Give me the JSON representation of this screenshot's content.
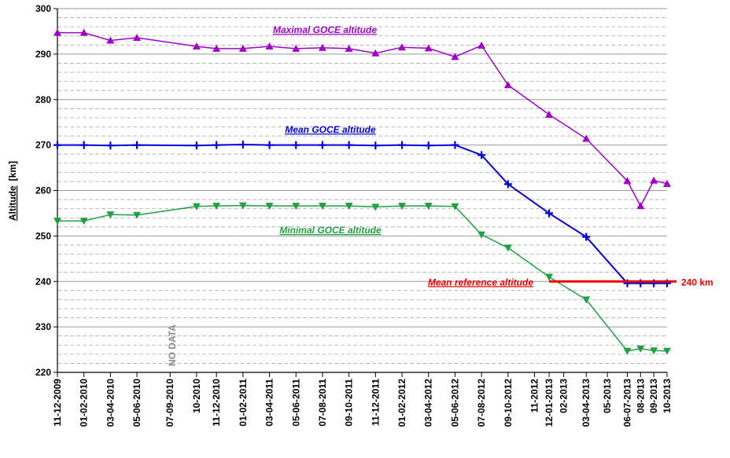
{
  "chart_data": {
    "type": "line",
    "ylabel": "Altitude",
    "ylabel_unit": "[km]",
    "annotation": "NO DATA",
    "xlim": [
      0,
      46
    ],
    "xticks": [
      {
        "value": 0,
        "label": "11-12-2009"
      },
      {
        "value": 2,
        "label": "01-02-2010"
      },
      {
        "value": 4,
        "label": "03-04-2010"
      },
      {
        "value": 6,
        "label": "05-06-2010"
      },
      {
        "value": 8.5,
        "label": "07-09-2010"
      },
      {
        "value": 10.5,
        "label": "10-2010"
      },
      {
        "value": 12,
        "label": "11-12-2010"
      },
      {
        "value": 14,
        "label": "01-02-2011"
      },
      {
        "value": 16,
        "label": "03-04-2011"
      },
      {
        "value": 18,
        "label": "05-06-2011"
      },
      {
        "value": 20,
        "label": "07-08-2011"
      },
      {
        "value": 22,
        "label": "09-10-2011"
      },
      {
        "value": 24,
        "label": "11-12-2011"
      },
      {
        "value": 26,
        "label": "01-02-2012"
      },
      {
        "value": 28,
        "label": "03-04-2012"
      },
      {
        "value": 30,
        "label": "05-06-2012"
      },
      {
        "value": 32,
        "label": "07-08-2012"
      },
      {
        "value": 34,
        "label": "09-10-2012"
      },
      {
        "value": 36,
        "label": "11-2012"
      },
      {
        "value": 37.1,
        "label": "12-01-2013"
      },
      {
        "value": 38.2,
        "label": "02-2013"
      },
      {
        "value": 39.9,
        "label": "03-04-2013"
      },
      {
        "value": 41.5,
        "label": "05-2013"
      },
      {
        "value": 43,
        "label": "06-07-2013"
      },
      {
        "value": 44,
        "label": "08-2013"
      },
      {
        "value": 45,
        "label": "09-2013"
      },
      {
        "value": 46,
        "label": "10-2013"
      }
    ],
    "ylim": [
      220,
      300
    ],
    "yticks": [
      220,
      230,
      240,
      250,
      260,
      270,
      280,
      290,
      300
    ],
    "minor_yticks": [
      222,
      224,
      226,
      228,
      232,
      234,
      236,
      238,
      242,
      244,
      246,
      248,
      252,
      254,
      256,
      258,
      262,
      264,
      266,
      268,
      272,
      274,
      276,
      278,
      282,
      284,
      286,
      288,
      292,
      294,
      296,
      298
    ],
    "grid": true,
    "series": [
      {
        "name": "Maximal GOCE altitude",
        "color": "#a000c8",
        "marker": "triangle-up",
        "x": [
          0,
          2,
          4,
          6,
          10.5,
          12,
          14,
          16,
          18,
          20,
          22,
          24,
          26,
          28,
          30,
          32,
          34,
          37.1,
          39.9,
          43,
          44,
          45,
          46
        ],
        "values": [
          294.7,
          294.7,
          293,
          293.6,
          291.7,
          291.2,
          291.2,
          291.7,
          291.2,
          291.4,
          291.2,
          290.2,
          291.5,
          291.3,
          289.4,
          291.9,
          283.2,
          276.7,
          271.4,
          262.1,
          256.6,
          262.2,
          261.5
        ]
      },
      {
        "name": "Mean GOCE altitude",
        "color": "#0000dd",
        "marker": "plus",
        "x": [
          0,
          2,
          4,
          6,
          10.5,
          12,
          14,
          16,
          18,
          20,
          22,
          24,
          26,
          28,
          30,
          32,
          34,
          37.1,
          39.9,
          43,
          44,
          45,
          46
        ],
        "values": [
          270,
          270,
          269.9,
          270,
          269.9,
          270,
          270.1,
          270,
          270,
          270,
          270,
          269.9,
          270,
          269.9,
          270,
          267.8,
          261.4,
          255,
          249.8,
          239.6,
          239.6,
          239.6,
          239.6
        ]
      },
      {
        "name": "Minimal GOCE altitude",
        "color": "#20a040",
        "marker": "triangle-down",
        "x": [
          0,
          2,
          4,
          6,
          10.5,
          12,
          14,
          16,
          18,
          20,
          22,
          24,
          26,
          28,
          30,
          32,
          34,
          37.1,
          39.9,
          43,
          44,
          45,
          46
        ],
        "values": [
          253.3,
          253.3,
          254.7,
          254.6,
          256.5,
          256.6,
          256.7,
          256.6,
          256.6,
          256.6,
          256.6,
          256.4,
          256.6,
          256.6,
          256.5,
          250.3,
          247.4,
          241,
          236,
          224.7,
          225.2,
          224.8,
          224.7
        ]
      }
    ],
    "reference": {
      "name": "Mean reference altitude",
      "color": "#ee0000",
      "value": 240,
      "value_label": "240 km",
      "xrange": [
        37.1,
        46
      ]
    }
  }
}
